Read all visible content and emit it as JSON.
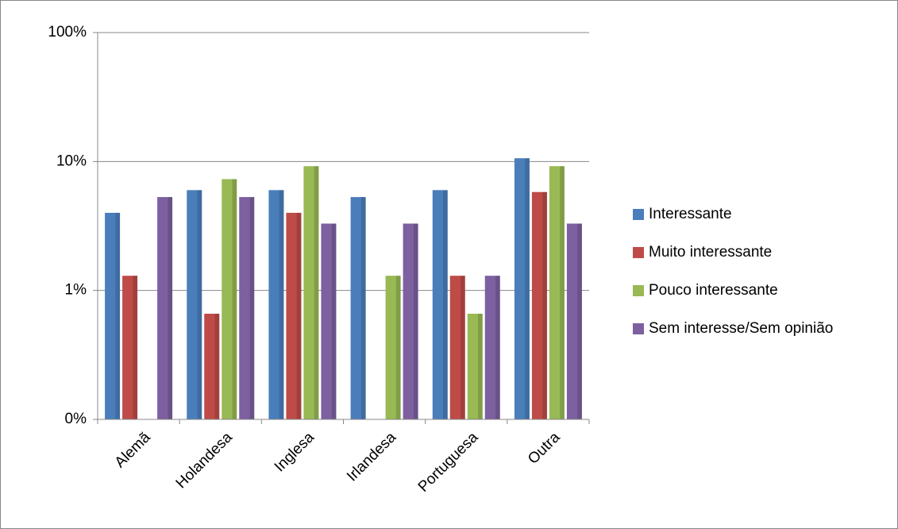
{
  "chart_data": {
    "type": "bar",
    "categories": [
      "Alemã",
      "Holandesa",
      "Inglesa",
      "Irlandesa",
      "Portuguesa",
      "Outra"
    ],
    "series": [
      {
        "name": "Interessante",
        "color": "#4a7ebb",
        "values": [
          4.0,
          6.0,
          6.0,
          5.3,
          6.0,
          10.6
        ]
      },
      {
        "name": "Muito interessante",
        "color": "#be4b48",
        "values": [
          1.3,
          0.66,
          4.0,
          null,
          1.3,
          5.8
        ]
      },
      {
        "name": "Pouco interessante",
        "color": "#98b954",
        "values": [
          null,
          7.3,
          9.2,
          1.3,
          0.66,
          9.2
        ]
      },
      {
        "name": "Sem interesse/Sem opinião",
        "color": "#7d60a0",
        "values": [
          5.3,
          5.3,
          3.3,
          3.3,
          1.3,
          3.3
        ]
      }
    ],
    "ylim": [
      0.1,
      100
    ],
    "yticks": [
      {
        "value": 0.1,
        "label": "0%"
      },
      {
        "value": 1,
        "label": "1%"
      },
      {
        "value": 10,
        "label": "10%"
      },
      {
        "value": 100,
        "label": "100%"
      }
    ],
    "log_scale": true,
    "grid": true,
    "legend": "right"
  }
}
